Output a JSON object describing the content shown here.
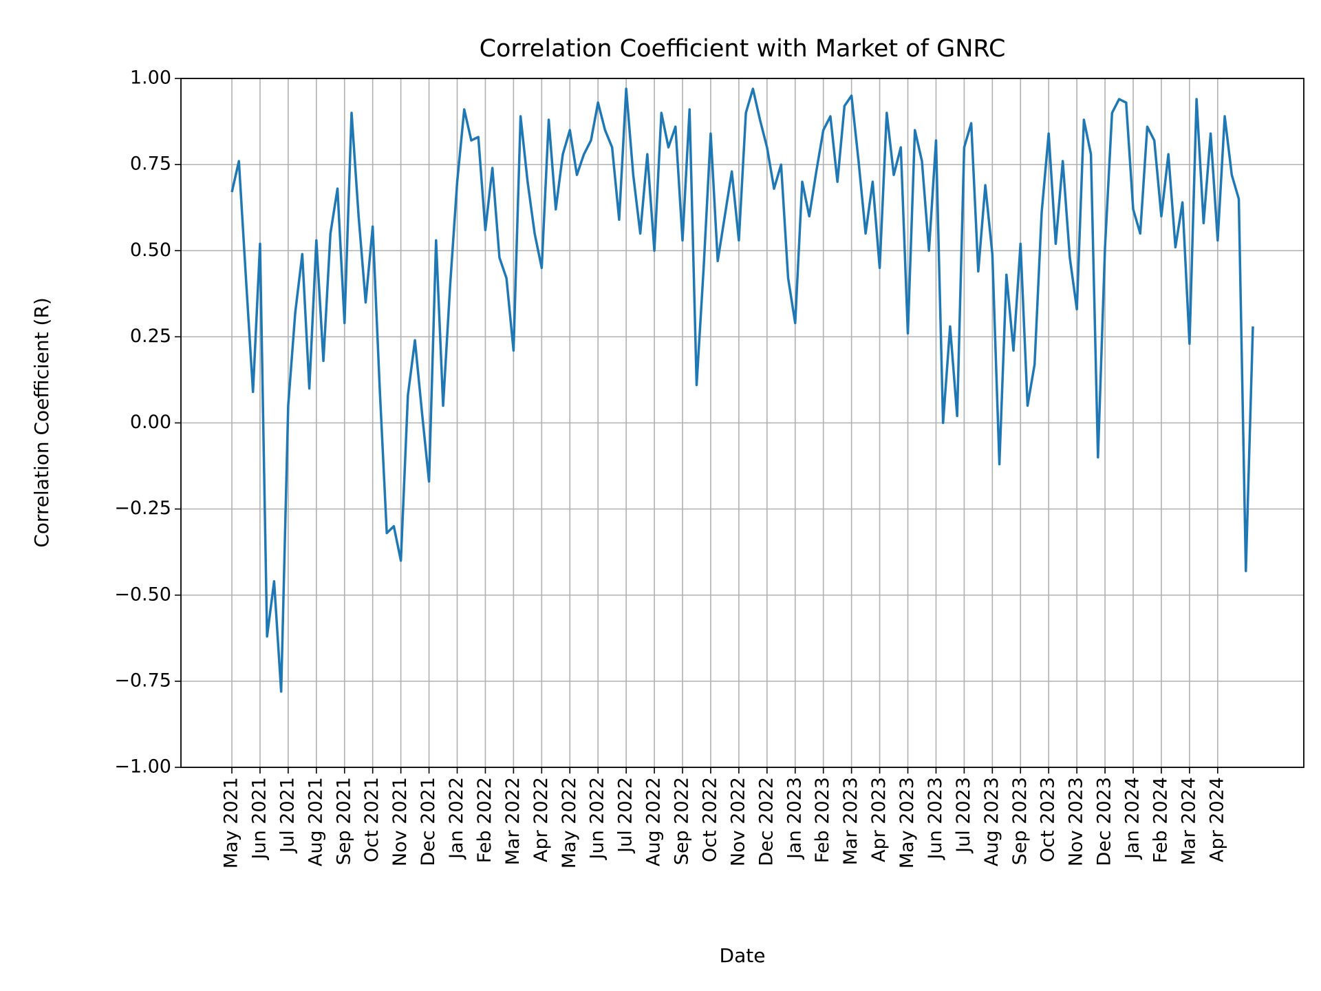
{
  "chart_data": {
    "type": "line",
    "title": "Correlation Coefficient with Market of GNRC",
    "x_label": "Date",
    "y_label": "Correlation Coefficient (R)",
    "grid": true,
    "ylim": [
      -1,
      1
    ],
    "yticks": [
      {
        "value": -1,
        "label": "−1.00"
      },
      {
        "value": -0.75,
        "label": "−0.75"
      },
      {
        "value": -0.5,
        "label": "−0.50"
      },
      {
        "value": -0.25,
        "label": "−0.25"
      },
      {
        "value": 0,
        "label": "0.00"
      },
      {
        "value": 0.25,
        "label": "0.25"
      },
      {
        "value": 0.5,
        "label": "0.50"
      },
      {
        "value": 0.75,
        "label": "0.75"
      },
      {
        "value": 1,
        "label": "1.00"
      }
    ],
    "categories": [
      "May 2021",
      null,
      null,
      null,
      "Jun 2021",
      null,
      null,
      null,
      "Jul 2021",
      null,
      null,
      null,
      "Aug 2021",
      null,
      null,
      null,
      "Sep 2021",
      null,
      null,
      null,
      "Oct 2021",
      null,
      null,
      null,
      "Nov 2021",
      null,
      null,
      null,
      "Dec 2021",
      null,
      null,
      null,
      "Jan 2022",
      null,
      null,
      null,
      "Feb 2022",
      null,
      null,
      null,
      "Mar 2022",
      null,
      null,
      null,
      "Apr 2022",
      null,
      null,
      null,
      "May 2022",
      null,
      null,
      null,
      "Jun 2022",
      null,
      null,
      null,
      "Jul 2022",
      null,
      null,
      null,
      "Aug 2022",
      null,
      null,
      null,
      "Sep 2022",
      null,
      null,
      null,
      "Oct 2022",
      null,
      null,
      null,
      "Nov 2022",
      null,
      null,
      null,
      "Dec 2022",
      null,
      null,
      null,
      "Jan 2023",
      null,
      null,
      null,
      "Feb 2023",
      null,
      null,
      null,
      "Mar 2023",
      null,
      null,
      null,
      "Apr 2023",
      null,
      null,
      null,
      "May 2023",
      null,
      null,
      null,
      "Jun 2023",
      null,
      null,
      null,
      "Jul 2023",
      null,
      null,
      null,
      "Aug 2023",
      null,
      null,
      null,
      "Sep 2023",
      null,
      null,
      null,
      "Oct 2023",
      null,
      null,
      null,
      "Nov 2023",
      null,
      null,
      null,
      "Dec 2023",
      null,
      null,
      null,
      "Jan 2024",
      null,
      null,
      null,
      "Feb 2024",
      null,
      null,
      null,
      "Mar 2024",
      null,
      null,
      null,
      "Apr 2024",
      null,
      null,
      null,
      null,
      null
    ],
    "series": [
      {
        "name": "GNRC",
        "color": "#1f77b4",
        "values": [
          0.67,
          0.76,
          0.42,
          0.09,
          0.52,
          -0.62,
          -0.46,
          -0.78,
          0.05,
          0.32,
          0.49,
          0.1,
          0.53,
          0.18,
          0.55,
          0.68,
          0.29,
          0.9,
          0.6,
          0.35,
          0.57,
          0.1,
          -0.32,
          -0.3,
          -0.4,
          0.08,
          0.24,
          0.03,
          -0.17,
          0.53,
          0.05,
          0.4,
          0.7,
          0.91,
          0.82,
          0.83,
          0.56,
          0.74,
          0.48,
          0.42,
          0.21,
          0.89,
          0.7,
          0.55,
          0.45,
          0.88,
          0.62,
          0.78,
          0.85,
          0.72,
          0.78,
          0.82,
          0.93,
          0.85,
          0.8,
          0.59,
          0.97,
          0.72,
          0.55,
          0.78,
          0.5,
          0.9,
          0.8,
          0.86,
          0.53,
          0.91,
          0.11,
          0.45,
          0.84,
          0.47,
          0.6,
          0.73,
          0.53,
          0.9,
          0.97,
          0.88,
          0.8,
          0.68,
          0.75,
          0.42,
          0.29,
          0.7,
          0.6,
          0.73,
          0.85,
          0.89,
          0.7,
          0.92,
          0.95,
          0.76,
          0.55,
          0.7,
          0.45,
          0.9,
          0.72,
          0.8,
          0.26,
          0.85,
          0.76,
          0.5,
          0.82,
          0.0,
          0.28,
          0.02,
          0.8,
          0.87,
          0.44,
          0.69,
          0.49,
          -0.12,
          0.43,
          0.21,
          0.52,
          0.05,
          0.17,
          0.61,
          0.84,
          0.52,
          0.76,
          0.48,
          0.33,
          0.88,
          0.78,
          -0.1,
          0.51,
          0.9,
          0.94,
          0.93,
          0.62,
          0.55,
          0.86,
          0.82,
          0.6,
          0.78,
          0.51,
          0.64,
          0.23,
          0.94,
          0.58,
          0.84,
          0.53,
          0.89,
          0.72,
          0.65,
          -0.43,
          0.28
        ]
      }
    ]
  }
}
